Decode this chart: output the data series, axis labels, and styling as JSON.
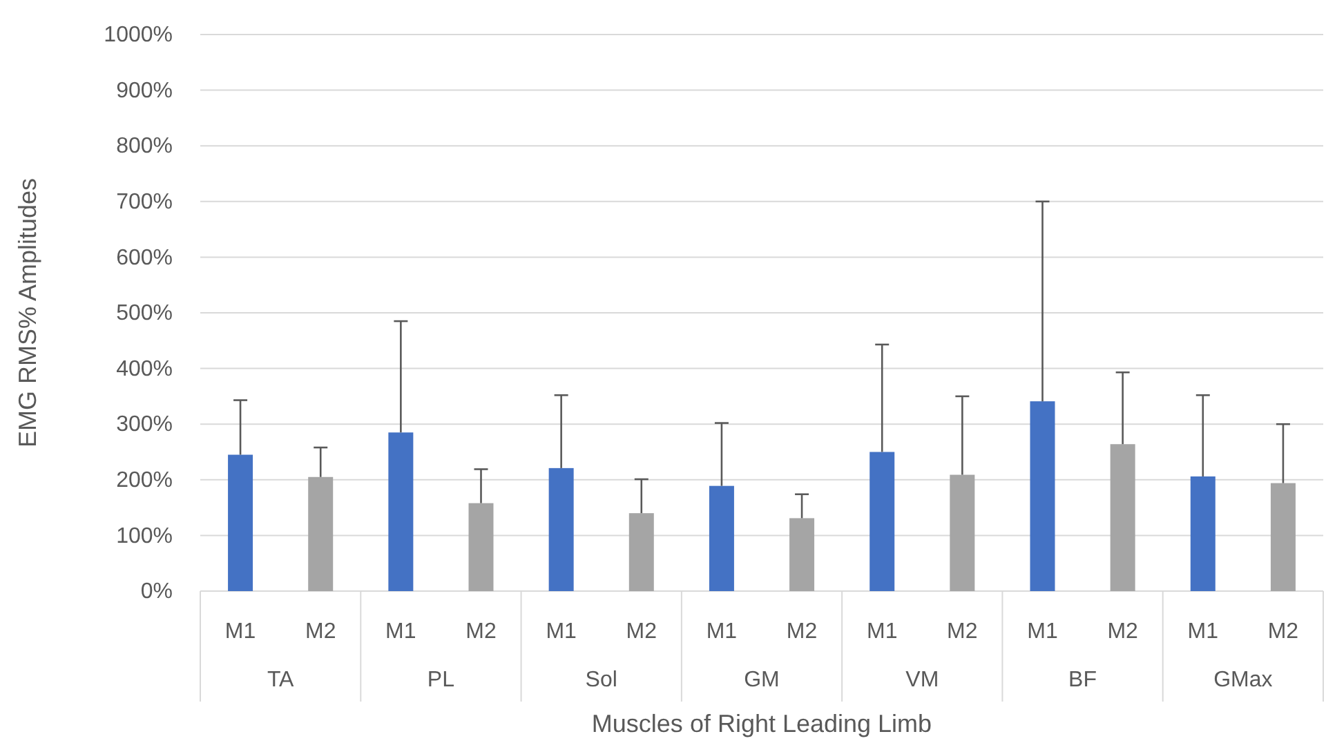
{
  "chart_data": {
    "type": "bar",
    "xlabel": "Muscles of Right Leading Limb",
    "ylabel": "EMG RMS% Amplitudes",
    "categories": [
      "TA",
      "PL",
      "Sol",
      "GM",
      "VM",
      "BF",
      "GMax"
    ],
    "series": [
      {
        "name": "M1",
        "color": "#4472c4",
        "values": [
          245,
          285,
          221,
          189,
          250,
          341,
          206
        ],
        "errors": [
          [
            245,
            343
          ],
          [
            285,
            485
          ],
          [
            221,
            352
          ],
          [
            189,
            302
          ],
          [
            250,
            443
          ],
          [
            341,
            700
          ],
          [
            206,
            352
          ]
        ]
      },
      {
        "name": "M2",
        "color": "#a5a5a5",
        "values": [
          205,
          158,
          140,
          131,
          209,
          264,
          194
        ],
        "errors": [
          [
            205,
            258
          ],
          [
            158,
            219
          ],
          [
            140,
            201
          ],
          [
            131,
            174
          ],
          [
            209,
            350
          ],
          [
            264,
            393
          ],
          [
            194,
            300
          ]
        ]
      }
    ],
    "ylim": [
      0,
      1000
    ],
    "yticks": [
      {
        "value": 0,
        "label": "0%"
      },
      {
        "value": 100,
        "label": "100%"
      },
      {
        "value": 200,
        "label": "200%"
      },
      {
        "value": 300,
        "label": "300%"
      },
      {
        "value": 400,
        "label": "400%"
      },
      {
        "value": 500,
        "label": "500%"
      },
      {
        "value": 600,
        "label": "600%"
      },
      {
        "value": 700,
        "label": "700%"
      },
      {
        "value": 800,
        "label": "800%"
      },
      {
        "value": 900,
        "label": "900%"
      },
      {
        "value": 1000,
        "label": "1000%"
      }
    ],
    "grid": "y"
  }
}
